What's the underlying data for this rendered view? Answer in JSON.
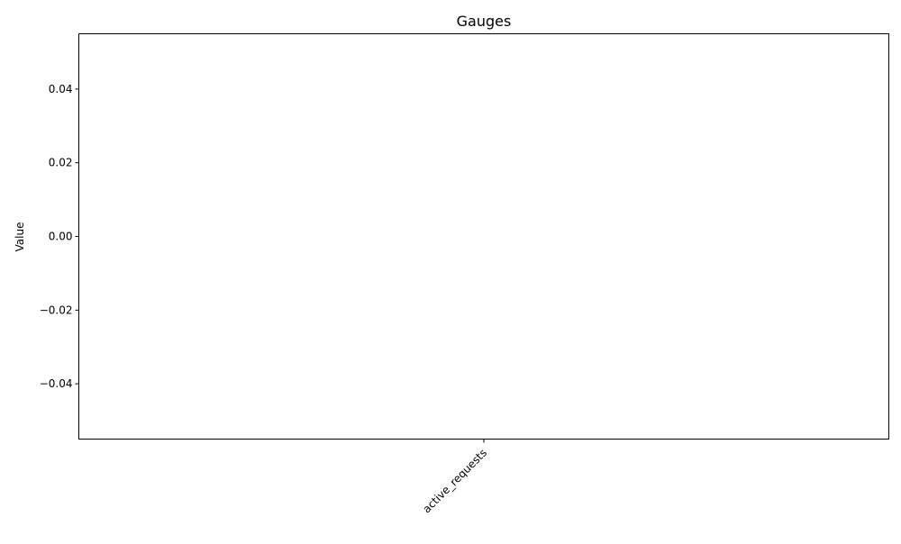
{
  "chart_data": {
    "type": "bar",
    "title": "Gauges",
    "xlabel": "",
    "ylabel": "Value",
    "categories": [
      "active_requests"
    ],
    "values": [
      0
    ],
    "ylim": [
      -0.055,
      0.055
    ],
    "yticks": [
      {
        "value": 0.04,
        "label": "0.04"
      },
      {
        "value": 0.02,
        "label": "0.02"
      },
      {
        "value": 0.0,
        "label": "0.00"
      },
      {
        "value": -0.02,
        "label": "−0.02"
      },
      {
        "value": -0.04,
        "label": "−0.04"
      }
    ],
    "xtick_rotation_deg": 45,
    "grid": false,
    "legend": "none",
    "colors": {
      "background": "#ffffff",
      "axes": "#000000",
      "bar": "#1f77b4"
    }
  }
}
